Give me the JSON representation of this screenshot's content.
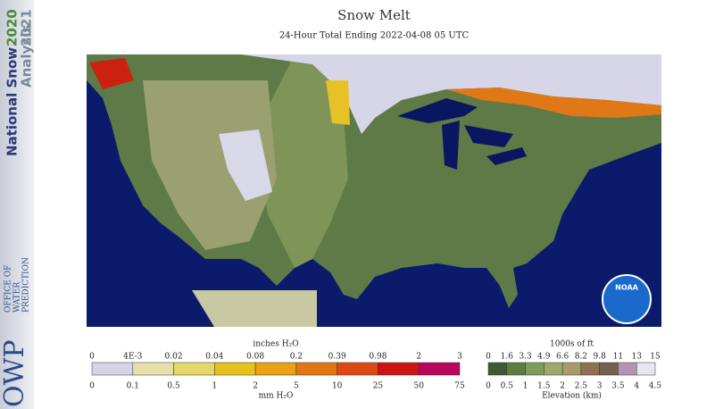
{
  "sidebar": {
    "line1": "National Snow",
    "year1": "2020",
    "line2": "Analysis",
    "year2": "2021",
    "logo": "OWP",
    "office": [
      "OFFICE OF",
      "WATER",
      "PREDICTION"
    ]
  },
  "header": {
    "title": "Snow Melt",
    "subtitle": "24-Hour Total Ending 2022-04-08 05 UTC"
  },
  "map": {
    "logo": "NOAA"
  },
  "legend_melt": {
    "top_title": "inches H₂O",
    "top_labels": [
      "0",
      "4E-3",
      "0.02",
      "0.04",
      "0.08",
      "0.2",
      "0.39",
      "0.98",
      "2",
      "3"
    ],
    "bottom_labels": [
      "0",
      "0.1",
      "0.5",
      "1",
      "2",
      "5",
      "10",
      "25",
      "50",
      "75"
    ],
    "bottom_title": "mm H₂O",
    "colors": [
      "#d4d4e6",
      "#e6e0a8",
      "#e4d668",
      "#e6c21e",
      "#e8a214",
      "#e27612",
      "#de4814",
      "#cc1414",
      "#b8085c"
    ]
  },
  "legend_elevation": {
    "top_title": "1000s of ft",
    "top_labels": [
      "0",
      "1.6",
      "3.3",
      "4.9",
      "6.6",
      "8.2",
      "9.8",
      "11",
      "13",
      "15"
    ],
    "bottom_labels": [
      "0",
      "0.5",
      "1",
      "1.5",
      "2",
      "2.5",
      "3",
      "3.5",
      "4",
      "4.5"
    ],
    "bottom_title": "Elevation (km)",
    "colors": [
      "#3e5a30",
      "#5c7c42",
      "#7e9c5a",
      "#9ea86a",
      "#a89a6a",
      "#8c7252",
      "#76604e",
      "#b494b4",
      "#e6e6ee"
    ]
  }
}
